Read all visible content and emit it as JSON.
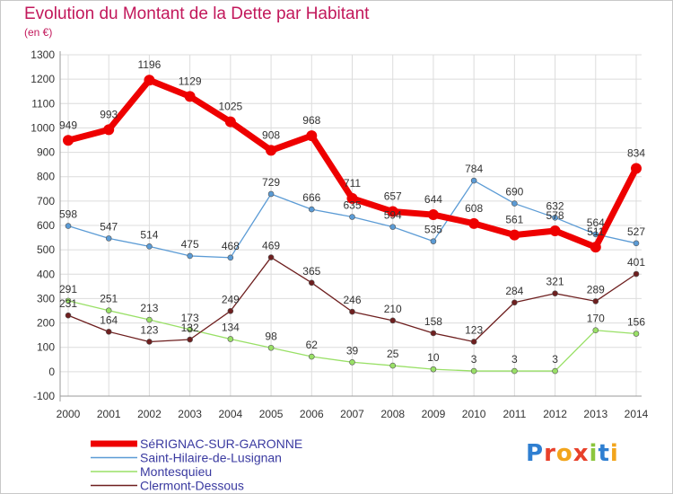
{
  "title": "Evolution du Montant de la Dette par Habitant",
  "subtitle": "(en €)",
  "logo": "Proxiti",
  "chart_data": {
    "type": "line",
    "title": "Evolution du Montant de la Dette par Habitant",
    "subtitle": "(en €)",
    "xlabel": "",
    "ylabel": "",
    "x": [
      "2000",
      "2001",
      "2002",
      "2003",
      "2004",
      "2005",
      "2006",
      "2007",
      "2008",
      "2009",
      "2010",
      "2011",
      "2012",
      "2013",
      "2014"
    ],
    "ylim": [
      -100,
      1300
    ],
    "yticks": [
      -100,
      0,
      100,
      200,
      300,
      400,
      500,
      600,
      700,
      800,
      900,
      1000,
      1100,
      1200,
      1300
    ],
    "grid": true,
    "legend_position": "bottom-left",
    "series": [
      {
        "name": "SéRIGNAC-SUR-GARONNE",
        "color": "#ee0000",
        "values": [
          949,
          993,
          1196,
          1129,
          1025,
          908,
          968,
          711,
          657,
          644,
          608,
          561,
          578,
          511,
          834
        ],
        "labels": [
          "949",
          "993",
          "1196",
          "1129",
          "1025",
          "908",
          "968",
          "711",
          "657",
          "644",
          "608",
          "561",
          "578",
          "511",
          "834"
        ]
      },
      {
        "name": "Saint-Hilaire-de-Lusignan",
        "color": "#5b9bd5",
        "values": [
          598,
          547,
          514,
          475,
          468,
          729,
          666,
          635,
          594,
          535,
          784,
          690,
          632,
          564,
          527
        ],
        "labels": [
          "598",
          "547",
          "514",
          "475",
          "468",
          "729",
          "666",
          "635",
          "594",
          "535",
          "784",
          "690",
          "632",
          "564",
          "527"
        ]
      },
      {
        "name": "Montesquieu",
        "color": "#99e066",
        "values": [
          291,
          251,
          213,
          173,
          134,
          98,
          62,
          39,
          25,
          10,
          3,
          3,
          3,
          170,
          156
        ],
        "labels": [
          "291",
          "251",
          "213",
          "173",
          "134",
          "98",
          "62",
          "39",
          "25",
          "10",
          "3",
          "3",
          "3",
          "170",
          "156"
        ]
      },
      {
        "name": "Clermont-Dessous",
        "color": "#6e1f1f",
        "values": [
          231,
          164,
          123,
          132,
          249,
          469,
          365,
          246,
          210,
          158,
          123,
          284,
          321,
          289,
          401
        ],
        "labels": [
          "231",
          "164",
          "123",
          "132",
          "249",
          "469",
          "365",
          "246",
          "210",
          "158",
          "123",
          "284",
          "321",
          "289",
          "401"
        ]
      }
    ]
  }
}
